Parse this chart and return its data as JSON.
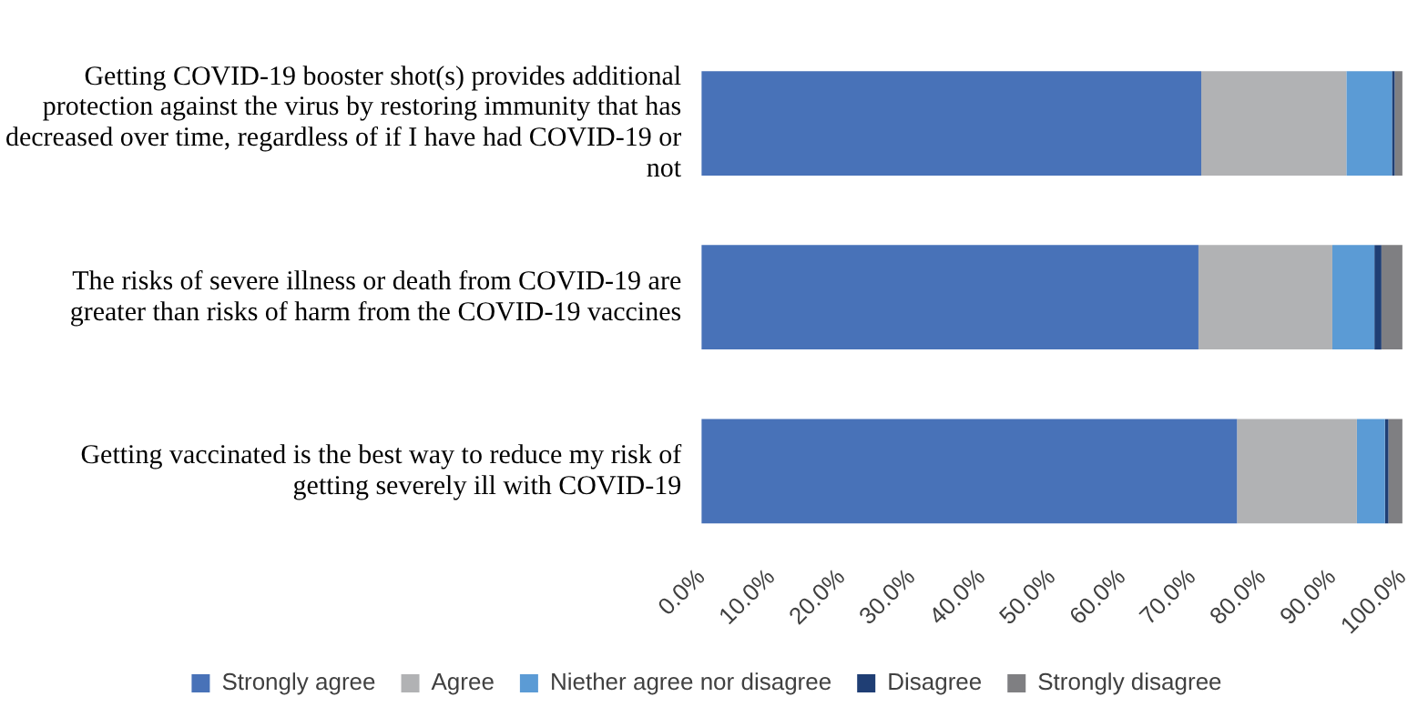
{
  "chart_data": {
    "type": "bar",
    "orientation": "horizontal",
    "stacked": true,
    "categories": [
      "Getting COVID-19 booster shot(s) provides additional protection against the virus by restoring immunity that has decreased over time, regardless of if I have had COVID-19 or not",
      "The risks of severe illness or death from COVID-19 are greater than risks of harm from the COVID-19 vaccines",
      "Getting vaccinated is the best way to reduce my risk of getting severely ill with COVID-19"
    ],
    "series": [
      {
        "name": "Strongly agree",
        "color": "#4872b8",
        "values": [
          71.3,
          70.9,
          76.4
        ]
      },
      {
        "name": "Agree",
        "color": "#b1b2b4",
        "values": [
          20.7,
          19.1,
          17.1
        ]
      },
      {
        "name": "Niether agree nor disagree",
        "color": "#5b9bd5",
        "values": [
          6.5,
          6.0,
          4.0
        ]
      },
      {
        "name": "Disagree",
        "color": "#1f3e74",
        "values": [
          0.4,
          1.0,
          0.5
        ]
      },
      {
        "name": "Strongly disagree",
        "color": "#7f7f82",
        "values": [
          1.1,
          3.0,
          2.0
        ]
      }
    ],
    "xlim": [
      0,
      100
    ],
    "xticks": [
      {
        "value": 0,
        "label": "0.0%"
      },
      {
        "value": 10,
        "label": "10.0%"
      },
      {
        "value": 20,
        "label": "20.0%"
      },
      {
        "value": 30,
        "label": "30.0%"
      },
      {
        "value": 40,
        "label": "40.0%"
      },
      {
        "value": 50,
        "label": "50.0%"
      },
      {
        "value": 60,
        "label": "60.0%"
      },
      {
        "value": 70,
        "label": "70.0%"
      },
      {
        "value": 80,
        "label": "80.0%"
      },
      {
        "value": 90,
        "label": "90.0%"
      },
      {
        "value": 100,
        "label": "100.0%"
      }
    ],
    "grid": false,
    "legend": "bottom"
  }
}
